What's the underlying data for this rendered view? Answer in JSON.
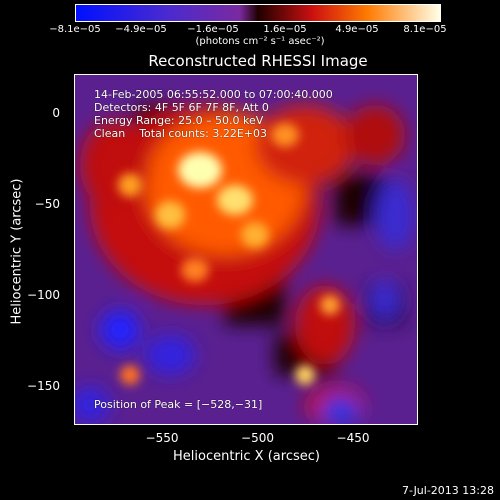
{
  "colorbar": {
    "ticks": [
      "−8.1e−05",
      "−4.9e−05",
      "−1.6e−05",
      "1.6e−05",
      "4.9e−05",
      "8.1e−05"
    ],
    "units": "(photons cm⁻² s⁻¹ asec⁻²)"
  },
  "chart_data": {
    "type": "heatmap",
    "title": "Reconstructed RHESSI Image",
    "xlabel": "Heliocentric X (arcsec)",
    "ylabel": "Heliocentric Y (arcsec)",
    "xlim": [
      -595,
      -505
    ],
    "ylim": [
      -170,
      20
    ],
    "x_ticks": [
      "−550",
      "−500",
      "−450"
    ],
    "y_ticks": [
      "0",
      "−50",
      "−100",
      "−150"
    ],
    "x_tick_values": [
      -550,
      -500,
      -450
    ],
    "y_tick_values": [
      0,
      -50,
      -100,
      -150
    ],
    "colorbar_range": [
      -8.1e-05,
      8.1e-05
    ],
    "colors": {
      "low": "#0033ff",
      "mid_low": "#7a2a9c",
      "mid": "#2a0000",
      "high": "#ff4000",
      "peak": "#ffffe0"
    },
    "annotations": {
      "time": "14-Feb-2005 06:55:52.000 to 07:00:40.000",
      "detectors": "Detectors: 4F 5F 6F 7F 8F, Att 0",
      "energy": "Energy Range: 25.0 – 50.0 keV",
      "clean": "Clean    Total counts: 3.22E+03",
      "peak": "Position of Peak = [−528,−31]"
    }
  },
  "footer": {
    "date": "7-Jul-2013 13:28"
  }
}
